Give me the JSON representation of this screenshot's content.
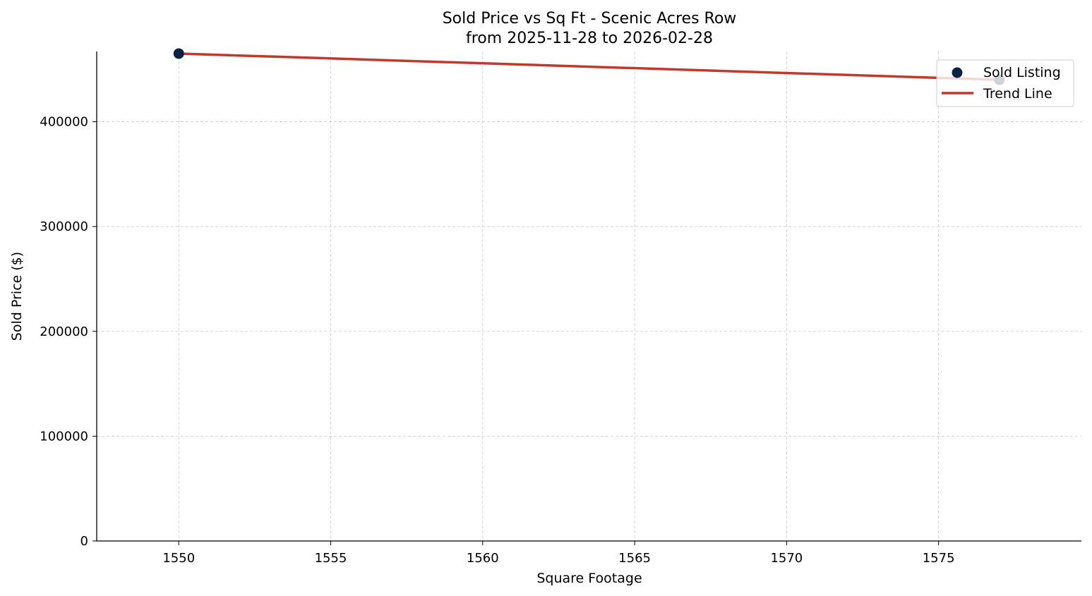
{
  "chart_data": {
    "type": "scatter",
    "title": "Sold Price vs Sq Ft - Scenic Acres Row",
    "subtitle": "from 2025-11-28 to 2026-02-28",
    "xlabel": "Square Footage",
    "ylabel": "Sold Price ($)",
    "xlim": [
      1547.3,
      1579.7
    ],
    "ylim": [
      0,
      467000
    ],
    "xticks": [
      1550,
      1555,
      1560,
      1565,
      1570,
      1575
    ],
    "yticks": [
      0,
      100000,
      200000,
      300000,
      400000
    ],
    "grid": true,
    "legend_placement": "top-right",
    "series": [
      {
        "name": "Sold Listing",
        "kind": "scatter",
        "color": "#0b2340",
        "points": [
          {
            "x": 1550,
            "y": 465000
          },
          {
            "x": 1577,
            "y": 440000
          }
        ]
      },
      {
        "name": "Trend Line",
        "kind": "line",
        "color": "#c0392b",
        "points": [
          {
            "x": 1550,
            "y": 465000
          },
          {
            "x": 1577,
            "y": 440000
          }
        ]
      }
    ]
  }
}
